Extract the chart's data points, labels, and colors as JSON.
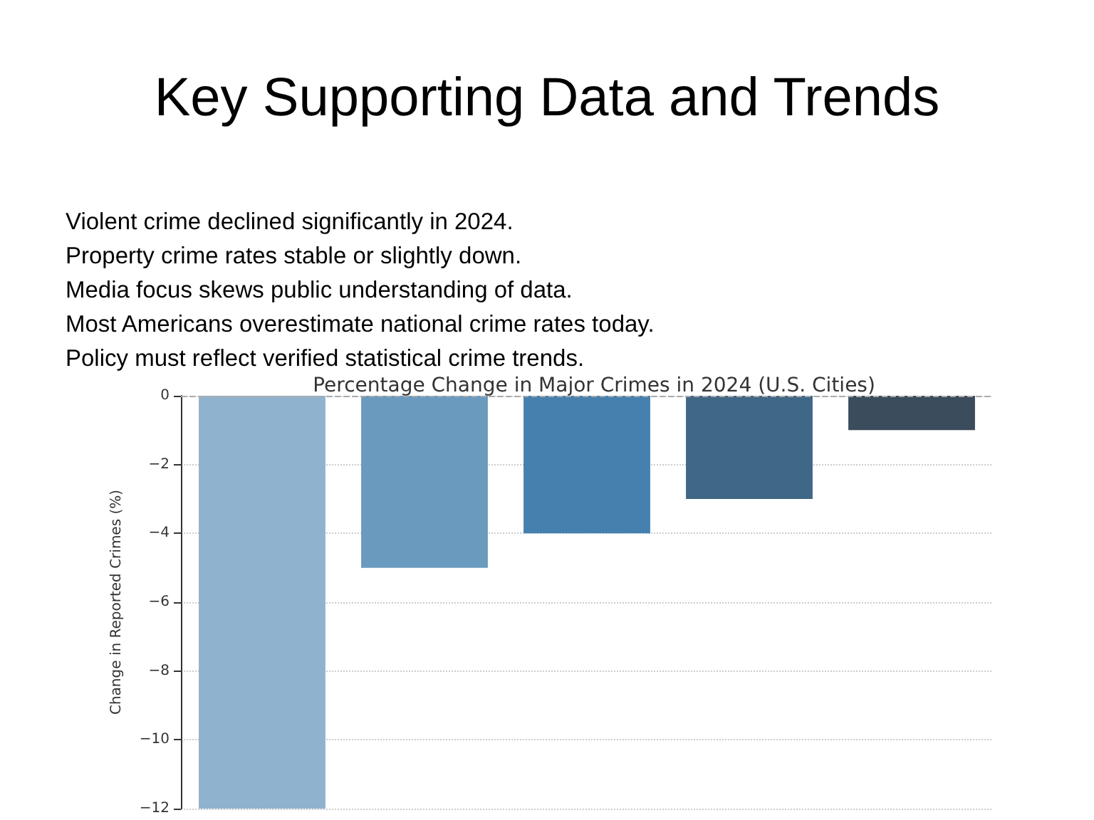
{
  "chart_data": {
    "type": "bar",
    "title": "Percentage Change in Major Crimes in 2024 (U.S. Cities)",
    "ylabel": "Change in Reported Crimes (%)",
    "annotations": [
      "Key Supporting Data and Trends",
      "Violent crime declined significantly in 2024.",
      "Property crime rates stable or slightly down.",
      "Media focus skews public understanding of data.",
      "Most Americans overestimate national crime rates today.",
      "Policy must reflect verified statistical crime trends."
    ],
    "categories": [
      null,
      null,
      null,
      null,
      null
    ],
    "values": [
      -12,
      -5,
      -4,
      -3,
      -1
    ],
    "colors": [
      "#8fb3cf",
      "#6a9bbf",
      "#4580ae",
      "#3f6786",
      "#3b4c5c"
    ],
    "ylim": [
      -12,
      0
    ],
    "yticks": [
      -12,
      -10,
      -8,
      -6,
      -4,
      -2,
      0
    ],
    "grid": "y",
    "ref_lines": [
      {
        "axis": "y",
        "value": 0,
        "color": "#aaaaaa",
        "line_style": "dashed"
      }
    ],
    "tick_labels": "y"
  }
}
